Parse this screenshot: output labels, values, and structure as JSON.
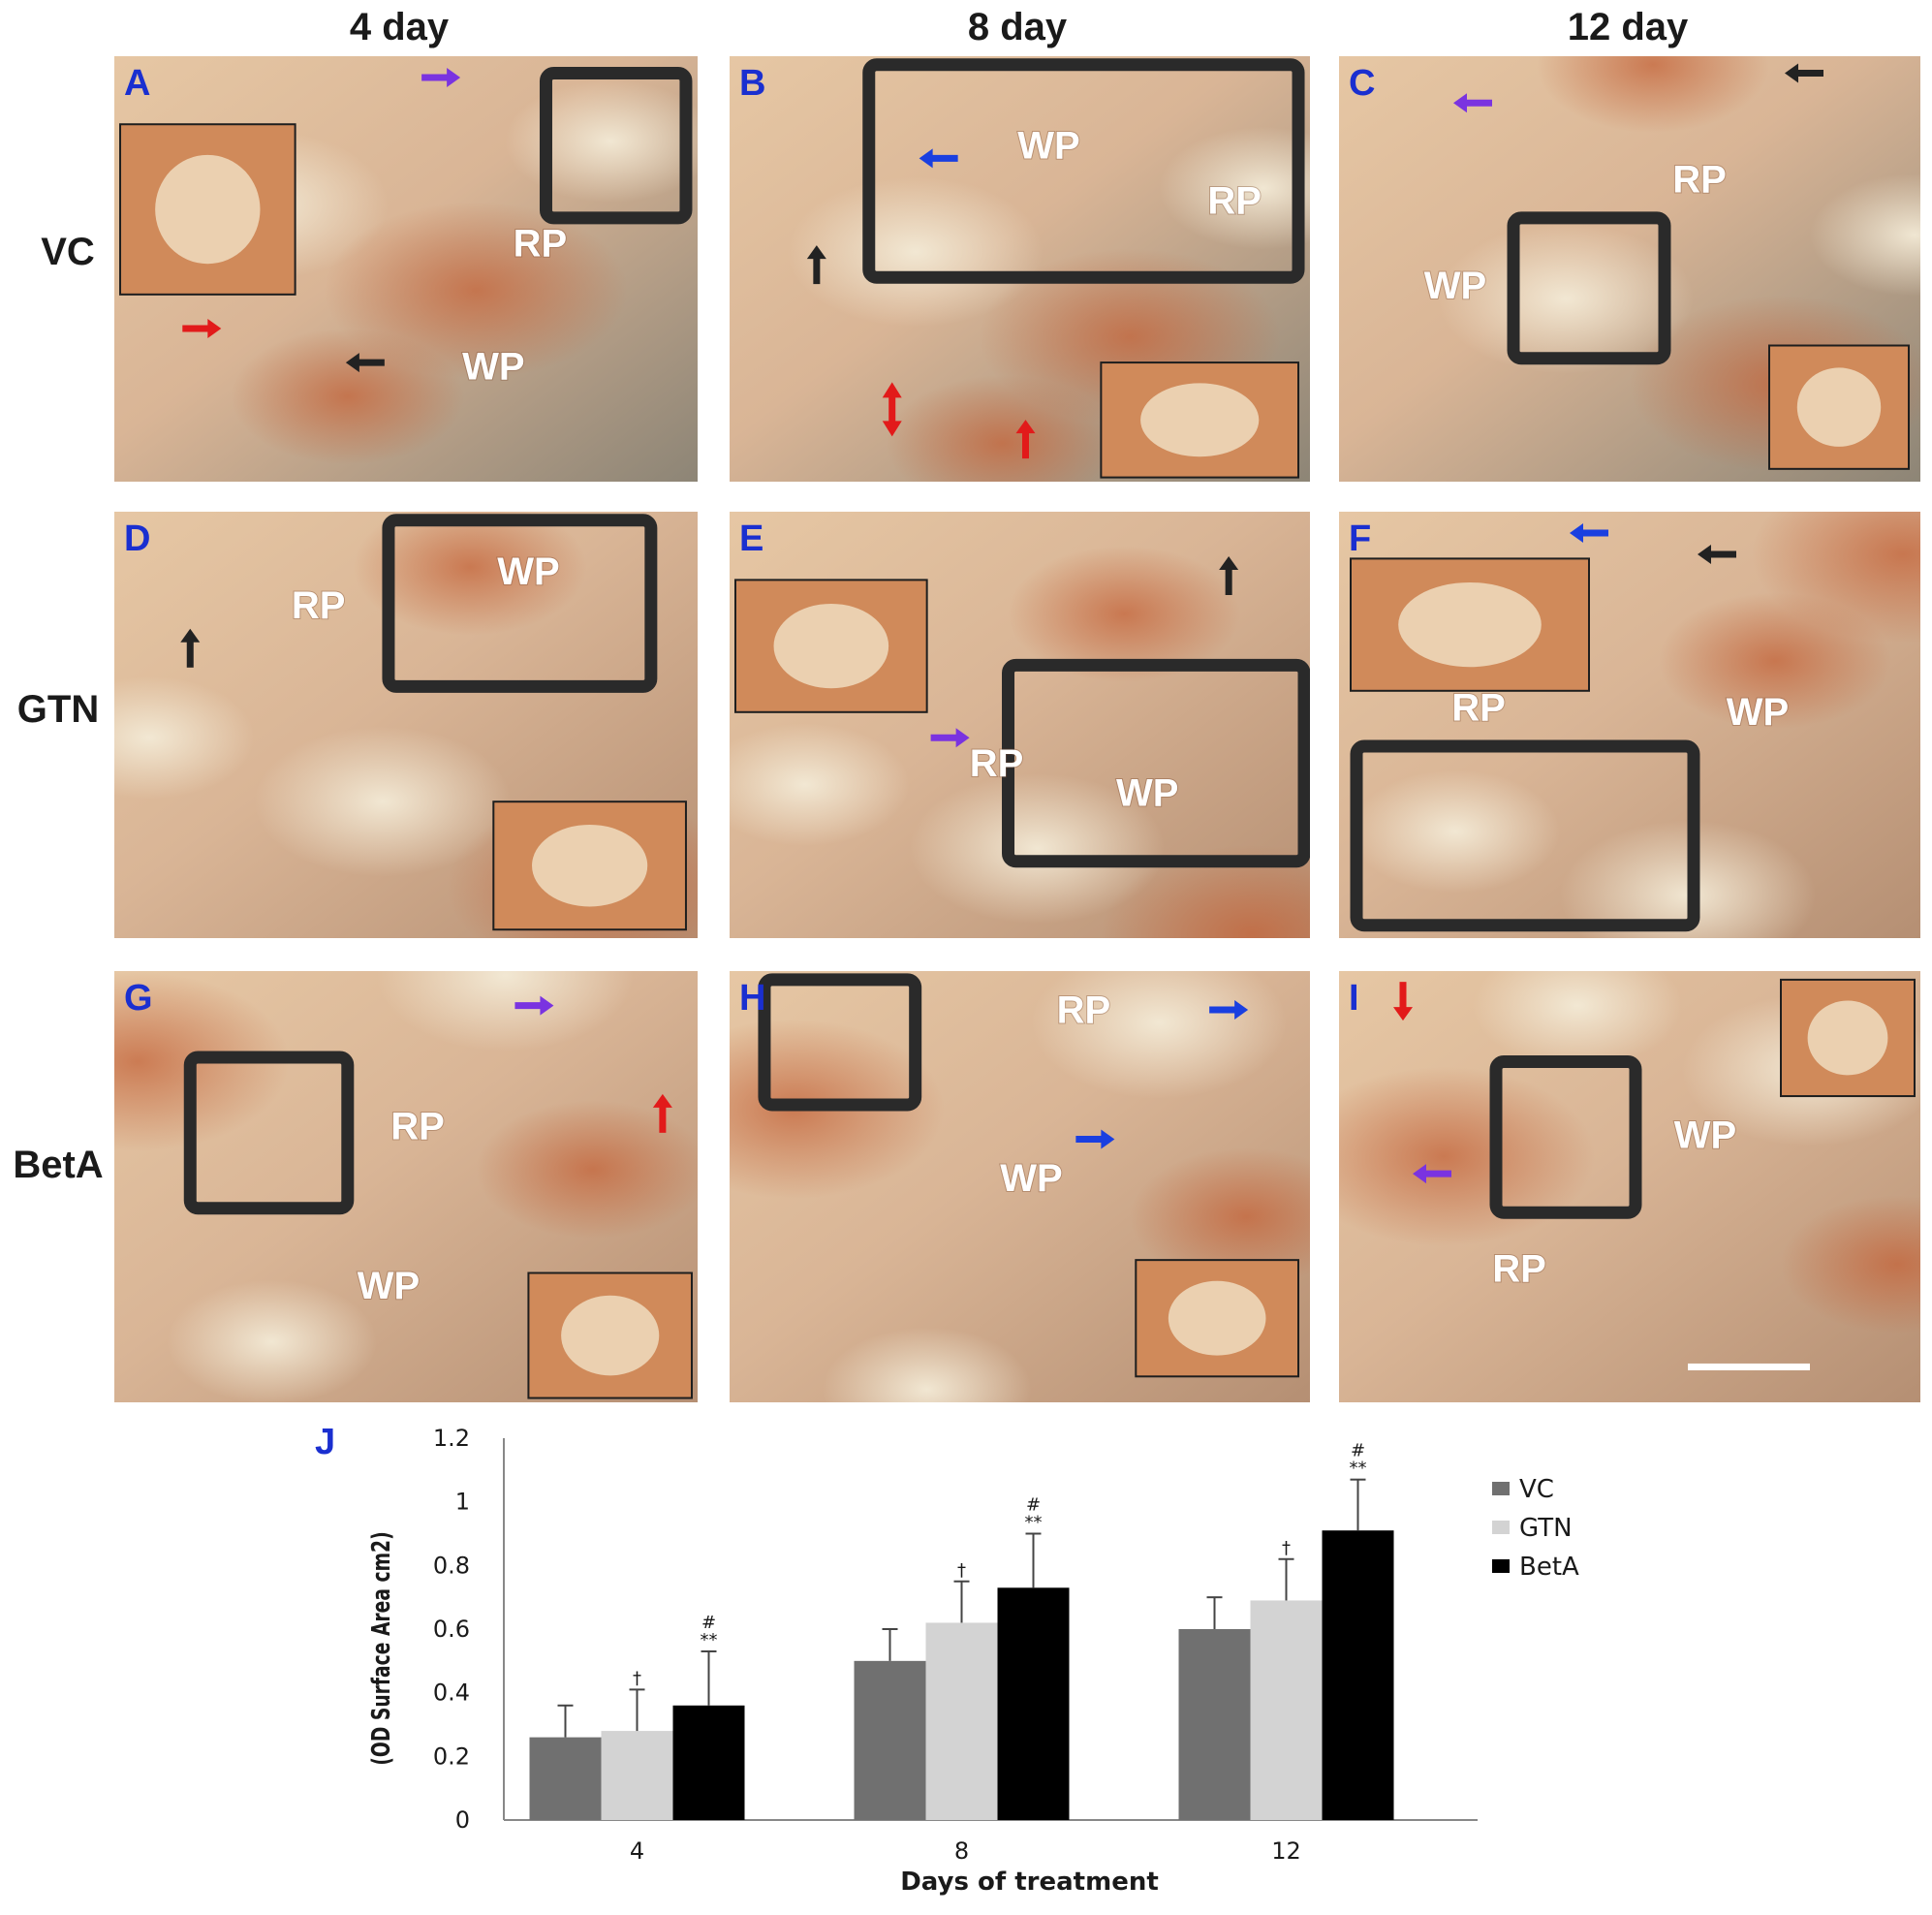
{
  "figure": {
    "column_titles": [
      "4 day",
      "8 day",
      "12 day"
    ],
    "row_titles": [
      "VC",
      "GTN",
      "BetA"
    ],
    "panels": [
      {
        "label": "A",
        "regions": [
          "RP",
          "WP"
        ],
        "arrows": [
          "purple-right",
          "red-right",
          "black-left"
        ]
      },
      {
        "label": "B",
        "regions": [
          "WP",
          "RP"
        ],
        "arrows": [
          "blue-left",
          "black-up",
          "red-updown",
          "red-up"
        ]
      },
      {
        "label": "C",
        "regions": [
          "RP",
          "WP"
        ],
        "arrows": [
          "purple-left",
          "black-left"
        ]
      },
      {
        "label": "D",
        "regions": [
          "WP",
          "RP"
        ],
        "arrows": [
          "black-up"
        ]
      },
      {
        "label": "E",
        "regions": [
          "RP",
          "WP"
        ],
        "arrows": [
          "purple-right",
          "black-up"
        ]
      },
      {
        "label": "F",
        "regions": [
          "RP",
          "WP"
        ],
        "arrows": [
          "blue-left",
          "black-left"
        ]
      },
      {
        "label": "G",
        "regions": [
          "RP",
          "WP"
        ],
        "arrows": [
          "purple-right",
          "red-up"
        ]
      },
      {
        "label": "H",
        "regions": [
          "RP",
          "WP"
        ],
        "arrows": [
          "blue-right",
          "blue-right"
        ]
      },
      {
        "label": "I",
        "regions": [
          "WP",
          "RP"
        ],
        "arrows": [
          "red-down",
          "purple-left"
        ]
      }
    ],
    "colors": {
      "panel_label": "#1a2fd0",
      "stain": "#c4643a",
      "tissue": "#e9d2b4",
      "box": "#2a2a2a",
      "arrow_red": "#e21a1a",
      "arrow_blue": "#1a3fe0",
      "arrow_purple": "#7a33e0",
      "arrow_black": "#222222"
    }
  },
  "chart_data": {
    "panel_label": "J",
    "type": "bar",
    "categories": [
      "4",
      "8",
      "12"
    ],
    "series": [
      {
        "name": "VC",
        "color": "#707070",
        "values": [
          0.26,
          0.5,
          0.6
        ],
        "errors": [
          0.1,
          0.1,
          0.1
        ]
      },
      {
        "name": "GTN",
        "color": "#d3d3d3",
        "values": [
          0.28,
          0.62,
          0.69
        ],
        "errors": [
          0.13,
          0.13,
          0.13
        ]
      },
      {
        "name": "BetA",
        "color": "#000000",
        "values": [
          0.36,
          0.73,
          0.91
        ],
        "errors": [
          0.17,
          0.17,
          0.16
        ]
      }
    ],
    "significance": [
      {
        "series": "GTN",
        "category": "4",
        "text": "†"
      },
      {
        "series": "BetA",
        "category": "4",
        "text": "**",
        "text2": "#"
      },
      {
        "series": "GTN",
        "category": "8",
        "text": "†"
      },
      {
        "series": "BetA",
        "category": "8",
        "text": "**",
        "text2": "#"
      },
      {
        "series": "GTN",
        "category": "12",
        "text": "†"
      },
      {
        "series": "BetA",
        "category": "12",
        "text": "**",
        "text2": "#"
      }
    ],
    "xlabel": "Days of treatment",
    "ylabel": "(OD Surface Area cm2)",
    "ylim": [
      0,
      1.2
    ],
    "yticks": [
      "0",
      "0.2",
      "0.4",
      "0.6",
      "0.8",
      "1",
      "1.2"
    ],
    "legend_position": "right",
    "grid": false
  }
}
